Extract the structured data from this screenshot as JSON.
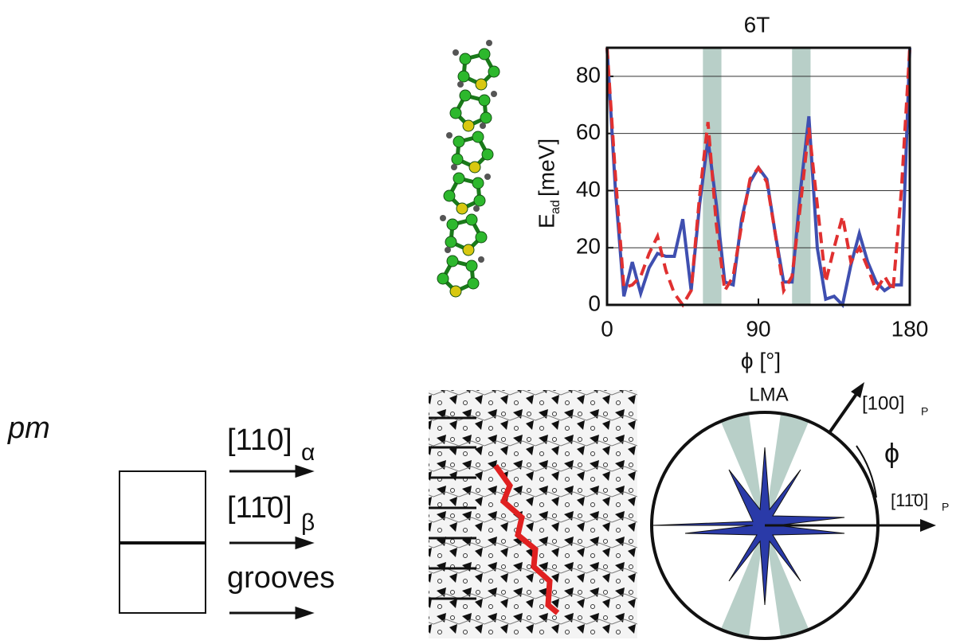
{
  "chart_data": {
    "type": "line",
    "title": "6T",
    "xlabel": "ϕ [°]",
    "ylabel": "E",
    "ylabel_sub": "ad",
    "ylabel_unit": "[meV]",
    "x": [
      0,
      5,
      10,
      15,
      20,
      25,
      30,
      35,
      40,
      45,
      50,
      55,
      60,
      65,
      70,
      75,
      80,
      85,
      90,
      95,
      100,
      105,
      110,
      115,
      120,
      125,
      130,
      135,
      140,
      145,
      150,
      155,
      160,
      165,
      170,
      175,
      180
    ],
    "series": [
      {
        "color": "#3f4fb0",
        "dash": false,
        "values": [
          90,
          40,
          3,
          15,
          4,
          13,
          18,
          17,
          17,
          30,
          5,
          35,
          58,
          35,
          8,
          7,
          30,
          43,
          48,
          44,
          25,
          8,
          8,
          40,
          66,
          20,
          2,
          3,
          0,
          14,
          25,
          15,
          8,
          5,
          7,
          7,
          90
        ]
      },
      {
        "color": "#e03030",
        "dash": true,
        "values": [
          90,
          45,
          6,
          7,
          10,
          18,
          24,
          12,
          4,
          0,
          5,
          38,
          64,
          28,
          5,
          10,
          28,
          44,
          48,
          43,
          25,
          5,
          10,
          35,
          62,
          35,
          8,
          20,
          31,
          15,
          20,
          13,
          5,
          10,
          5,
          40,
          90
        ]
      }
    ],
    "shaded_ranges": [
      [
        57,
        68
      ],
      [
        110,
        121
      ]
    ],
    "shade_color": "#b8cfc8",
    "xlim": [
      0,
      180
    ],
    "xticks": [
      0,
      90,
      180
    ],
    "ylim": [
      0,
      90
    ],
    "yticks": [
      0,
      20,
      40,
      60,
      80
    ],
    "grid": true
  },
  "panels": {
    "symmetry": "pm",
    "dir1": "[110]",
    "dir1_sub": "α",
    "dir2": "[11̄0]",
    "dir2_sub": "β",
    "dir3": "grooves",
    "polar_title": "LMA",
    "axis1": "[100]",
    "axis1_sub": "P",
    "angle": "ϕ",
    "axis2": "[11̄0]",
    "axis2_sub": "P"
  }
}
